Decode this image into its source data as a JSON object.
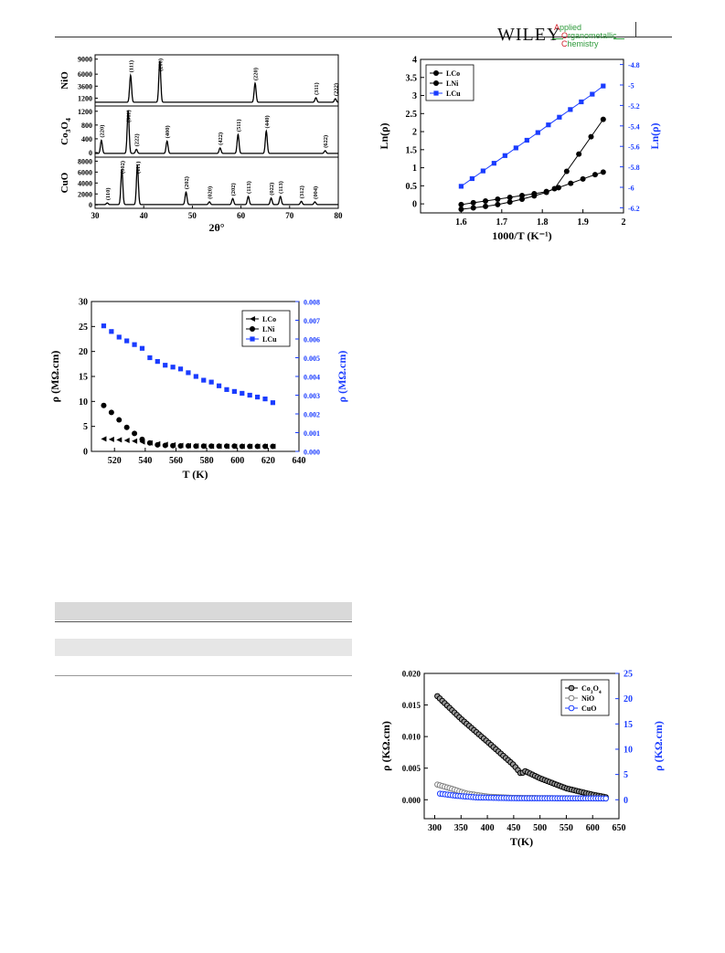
{
  "header": {
    "publisher": "WILEY",
    "journal_lines": [
      [
        "A",
        "pplied"
      ],
      [
        "O",
        "rganometallic"
      ],
      [
        "C",
        "hemistry"
      ]
    ]
  },
  "colors": {
    "blue": "#1a3cff",
    "black": "#000000",
    "grey": "#808080",
    "table_band": "#d9d9d9"
  },
  "chart_data": [
    {
      "id": "xrd",
      "type": "line",
      "xlabel": "2θ°",
      "xlim": [
        30,
        80
      ],
      "x_ticks": [
        30,
        40,
        50,
        60,
        70,
        80
      ],
      "panels": [
        {
          "label": "NiO",
          "yticks": [
            1200,
            3600,
            6000,
            9000
          ],
          "ylim": [
            0,
            9500
          ],
          "peaks": [
            {
              "x": 37.3,
              "h": 5400,
              "label": "(111)"
            },
            {
              "x": 43.3,
              "h": 8200,
              "label": "(200)"
            },
            {
              "x": 62.9,
              "h": 3800,
              "label": "(220)"
            },
            {
              "x": 75.4,
              "h": 900,
              "label": "(311)"
            },
            {
              "x": 79.4,
              "h": 700,
              "label": "(222)"
            }
          ]
        },
        {
          "label": "Co3O4",
          "yticks": [
            0,
            400,
            800,
            1200
          ],
          "ylim": [
            -80,
            1300
          ],
          "peaks": [
            {
              "x": 31.3,
              "h": 380,
              "label": "(220)"
            },
            {
              "x": 36.8,
              "h": 1250,
              "label": "(311)"
            },
            {
              "x": 38.5,
              "h": 120,
              "label": "(222)"
            },
            {
              "x": 44.8,
              "h": 360,
              "label": "(400)"
            },
            {
              "x": 55.7,
              "h": 160,
              "label": "(422)"
            },
            {
              "x": 59.4,
              "h": 550,
              "label": "(511)"
            },
            {
              "x": 65.2,
              "h": 650,
              "label": "(440)"
            },
            {
              "x": 77.3,
              "h": 80,
              "label": "(622)"
            }
          ]
        },
        {
          "label": "CuO",
          "yticks": [
            0,
            2000,
            4000,
            6000,
            8000
          ],
          "ylim": [
            -300,
            8400
          ],
          "peaks": [
            {
              "x": 32.5,
              "h": 300,
              "label": "(110)"
            },
            {
              "x": 35.5,
              "h": 6400,
              "label": "(002)"
            },
            {
              "x": 38.7,
              "h": 7200,
              "label": "(111)"
            },
            {
              "x": 48.7,
              "h": 2300,
              "label": "(202)"
            },
            {
              "x": 53.5,
              "h": 500,
              "label": "(020)"
            },
            {
              "x": 58.3,
              "h": 1100,
              "label": "(202)"
            },
            {
              "x": 61.5,
              "h": 1500,
              "label": "(113)"
            },
            {
              "x": 66.2,
              "h": 1200,
              "label": "(022)"
            },
            {
              "x": 68.1,
              "h": 1500,
              "label": "(113)"
            },
            {
              "x": 72.4,
              "h": 600,
              "label": "(312)"
            },
            {
              "x": 75.2,
              "h": 500,
              "label": "(004)"
            }
          ]
        }
      ]
    },
    {
      "id": "lnrho",
      "type": "scatter",
      "xlabel": "1000/T (K⁻¹)",
      "ylabel_left": "Ln(ρ)",
      "ylabel_right": "Ln(ρ)",
      "xlim": [
        1.5,
        2.0
      ],
      "ylim_left": [
        -0.25,
        4.0
      ],
      "ylim_right": [
        -6.25,
        -4.75
      ],
      "x_ticks": [
        1.6,
        1.7,
        1.8,
        1.9,
        2.0
      ],
      "y_ticks_left": [
        0.0,
        0.5,
        1.0,
        1.5,
        2.0,
        2.5,
        3.0,
        3.5,
        4.0
      ],
      "y_ticks_right": [
        -6.2,
        -6.0,
        -5.8,
        -5.6,
        -5.4,
        -5.2,
        -5.0,
        -4.8
      ],
      "legend": [
        "LCo",
        "LNi",
        "LCu"
      ],
      "series": [
        {
          "name": "LCo",
          "axis": "left",
          "marker": "circle",
          "color": "#000000",
          "x": [
            1.6,
            1.63,
            1.66,
            1.69,
            1.72,
            1.75,
            1.78,
            1.81,
            1.84,
            1.87,
            1.9,
            1.93,
            1.95
          ],
          "y": [
            -0.02,
            0.03,
            0.08,
            0.13,
            0.18,
            0.23,
            0.28,
            0.34,
            0.45,
            0.57,
            0.69,
            0.81,
            0.88
          ]
        },
        {
          "name": "LNi",
          "axis": "left",
          "marker": "circle",
          "color": "#000000",
          "x": [
            1.6,
            1.63,
            1.66,
            1.69,
            1.72,
            1.75,
            1.78,
            1.81,
            1.83,
            1.86,
            1.89,
            1.92,
            1.95
          ],
          "y": [
            -0.15,
            -0.11,
            -0.07,
            -0.02,
            0.05,
            0.13,
            0.22,
            0.32,
            0.42,
            0.9,
            1.38,
            1.86,
            2.34
          ]
        },
        {
          "name": "LCu",
          "axis": "right",
          "marker": "square",
          "color": "#1a3cff",
          "x": [
            1.6,
            1.627,
            1.654,
            1.681,
            1.708,
            1.735,
            1.762,
            1.789,
            1.815,
            1.842,
            1.869,
            1.896,
            1.923,
            1.95
          ],
          "y": [
            -5.99,
            -5.915,
            -5.84,
            -5.765,
            -5.69,
            -5.615,
            -5.54,
            -5.465,
            -5.39,
            -5.315,
            -5.24,
            -5.165,
            -5.09,
            -5.01
          ]
        }
      ]
    },
    {
      "id": "rho_T_L",
      "type": "scatter",
      "xlabel": "T (K)",
      "ylabel_left": "ρ (MΩ.cm)",
      "ylabel_right": "ρ (MΩ.cm)",
      "xlim": [
        505,
        640
      ],
      "ylim_left": [
        0,
        30
      ],
      "ylim_right": [
        0,
        0.008
      ],
      "x_ticks": [
        520,
        540,
        560,
        580,
        600,
        620,
        640
      ],
      "y_ticks_left": [
        0,
        5,
        10,
        15,
        20,
        25,
        30
      ],
      "y_ticks_right": [
        "0.000",
        "0.001",
        "0.002",
        "0.003",
        "0.004",
        "0.005",
        "0.006",
        "0.007",
        "0.008"
      ],
      "legend": [
        "LCo",
        "LNi",
        "LCu"
      ],
      "series": [
        {
          "name": "LCo",
          "axis": "left",
          "marker": "triangle-left",
          "color": "#000000",
          "x": [
            513,
            518,
            523,
            528,
            533,
            538,
            543,
            548,
            553,
            558,
            563,
            568,
            573,
            578,
            583,
            588,
            593,
            598,
            603,
            608,
            613,
            618,
            623
          ],
          "y": [
            2.5,
            2.4,
            2.3,
            2.2,
            2.05,
            1.9,
            1.7,
            1.5,
            1.4,
            1.3,
            1.2,
            1.15,
            1.1,
            1.05,
            1.0,
            1.0,
            1.0,
            1.0,
            1.0,
            1.0,
            1.0,
            1.0,
            1.0
          ]
        },
        {
          "name": "LNi",
          "axis": "left",
          "marker": "circle",
          "color": "#000000",
          "x": [
            513,
            518,
            523,
            528,
            533,
            538,
            543,
            548,
            553,
            558,
            563,
            568,
            573,
            578,
            583,
            588,
            593,
            598,
            603,
            608,
            613,
            618,
            623
          ],
          "y": [
            9.2,
            7.8,
            6.3,
            4.8,
            3.6,
            2.4,
            1.7,
            1.3,
            1.2,
            1.15,
            1.1,
            1.1,
            1.05,
            1.05,
            1.05,
            1.05,
            1.05,
            1.05,
            1.0,
            1.0,
            1.0,
            1.0,
            1.0
          ]
        },
        {
          "name": "LCu",
          "axis": "right",
          "marker": "square",
          "color": "#1a3cff",
          "x": [
            513,
            518,
            523,
            528,
            533,
            538,
            543,
            548,
            553,
            558,
            563,
            568,
            573,
            578,
            583,
            588,
            593,
            598,
            603,
            608,
            613,
            618,
            623
          ],
          "y": [
            0.0067,
            0.0064,
            0.0061,
            0.0059,
            0.0057,
            0.0055,
            0.005,
            0.0048,
            0.0046,
            0.0045,
            0.0044,
            0.0042,
            0.004,
            0.0038,
            0.0037,
            0.0035,
            0.0033,
            0.0032,
            0.0031,
            0.003,
            0.0029,
            0.0028,
            0.0026
          ]
        }
      ]
    },
    {
      "id": "rho_T_oxides",
      "type": "scatter",
      "xlabel": "T(K)",
      "ylabel_left": "ρ (KΩ.cm)",
      "ylabel_right": "ρ (KΩ.cm)",
      "xlim": [
        280,
        650
      ],
      "ylim_left": [
        -0.003,
        0.02
      ],
      "ylim_right": [
        -3.75,
        25
      ],
      "x_ticks": [
        300,
        350,
        400,
        450,
        500,
        550,
        600,
        650
      ],
      "y_ticks_left": [
        "0.000",
        "0.005",
        "0.010",
        "0.015",
        "0.020"
      ],
      "y_ticks_right": [
        0,
        5,
        10,
        15,
        20,
        25
      ],
      "legend": [
        "Co3O4",
        "NiO",
        "CuO"
      ],
      "series": [
        {
          "name": "Co3O4",
          "axis": "left",
          "marker": "open-circle-dark",
          "color": "#000000",
          "x_start": 305,
          "x_end": 625,
          "points": 70,
          "curve": [
            [
              305,
              0.0164
            ],
            [
              350,
              0.0128
            ],
            [
              400,
              0.0092
            ],
            [
              450,
              0.0055
            ],
            [
              465,
              0.004
            ],
            [
              470,
              0.0046
            ],
            [
              500,
              0.0034
            ],
            [
              550,
              0.0018
            ],
            [
              600,
              0.0008
            ],
            [
              625,
              0.0004
            ]
          ]
        },
        {
          "name": "NiO",
          "axis": "left",
          "marker": "open-circle-grey",
          "color": "#808080",
          "x_start": 305,
          "x_end": 625,
          "points": 70,
          "curve": [
            [
              305,
              0.0024
            ],
            [
              330,
              0.0018
            ],
            [
              360,
              0.001
            ],
            [
              400,
              0.0005
            ],
            [
              450,
              0.0003
            ],
            [
              625,
              0.0002
            ]
          ]
        },
        {
          "name": "CuO",
          "axis": "right",
          "marker": "open-circle-blue",
          "color": "#1a3cff",
          "x_start": 310,
          "x_end": 625,
          "points": 66,
          "curve": [
            [
              310,
              1.2
            ],
            [
              340,
              0.8
            ],
            [
              380,
              0.45
            ],
            [
              450,
              0.3
            ],
            [
              625,
              0.25
            ]
          ]
        }
      ]
    }
  ]
}
